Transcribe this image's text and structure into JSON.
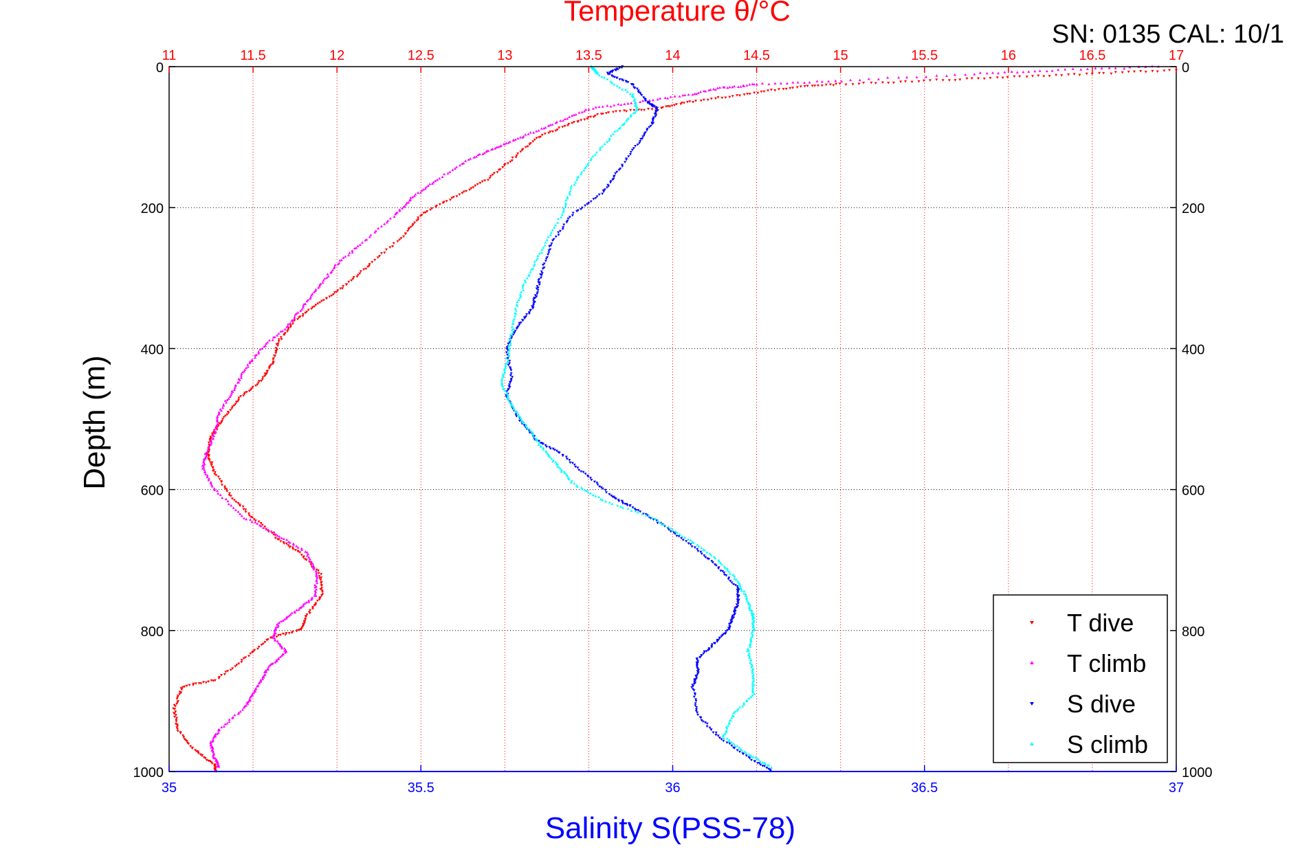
{
  "chart_data": {
    "type": "scatter",
    "title": "Temperature θ/°C",
    "header_note": "SN: 0135  CAL: 10/1",
    "top_axis": {
      "label": "Temperature θ/°C",
      "range": [
        11,
        17
      ],
      "ticks": [
        "11",
        "11.5",
        "12",
        "12.5",
        "13",
        "13.5",
        "14",
        "14.5",
        "15",
        "15.5",
        "16",
        "16.5",
        "17"
      ],
      "color": "#ff0000"
    },
    "bottom_axis": {
      "label": "Salinity S(PSS-78)",
      "range": [
        35,
        37
      ],
      "ticks": [
        "35",
        "35.5",
        "36",
        "36.5",
        "37"
      ],
      "color": "#0000ff"
    },
    "y_axis": {
      "label": "Depth (m)",
      "range": [
        0,
        1000
      ],
      "reversed": true,
      "ticks": [
        "0",
        "200",
        "400",
        "600",
        "800",
        "1000"
      ]
    },
    "grid": true,
    "legend": {
      "position": "bottom-right",
      "entries": [
        "T dive",
        "T climb",
        "S dive",
        "S climb"
      ]
    },
    "series": [
      {
        "name": "T dive",
        "axis": "temperature",
        "color": "#ff0000",
        "points": [
          [
            17.0,
            5
          ],
          [
            16.5,
            10
          ],
          [
            16.0,
            15
          ],
          [
            15.5,
            20
          ],
          [
            15.0,
            25
          ],
          [
            14.7,
            30
          ],
          [
            14.4,
            40
          ],
          [
            14.1,
            50
          ],
          [
            13.9,
            60
          ],
          [
            13.6,
            65
          ],
          [
            13.4,
            80
          ],
          [
            13.2,
            100
          ],
          [
            13.05,
            130
          ],
          [
            12.9,
            160
          ],
          [
            12.7,
            185
          ],
          [
            12.5,
            210
          ],
          [
            12.4,
            240
          ],
          [
            12.2,
            280
          ],
          [
            12.05,
            310
          ],
          [
            11.9,
            335
          ],
          [
            11.75,
            360
          ],
          [
            11.65,
            390
          ],
          [
            11.62,
            420
          ],
          [
            11.55,
            445
          ],
          [
            11.42,
            470
          ],
          [
            11.32,
            500
          ],
          [
            11.25,
            525
          ],
          [
            11.23,
            550
          ],
          [
            11.27,
            575
          ],
          [
            11.37,
            610
          ],
          [
            11.5,
            640
          ],
          [
            11.65,
            670
          ],
          [
            11.78,
            690
          ],
          [
            11.9,
            720
          ],
          [
            11.91,
            750
          ],
          [
            11.82,
            780
          ],
          [
            11.78,
            800
          ],
          [
            11.6,
            810
          ],
          [
            11.45,
            840
          ],
          [
            11.28,
            870
          ],
          [
            11.08,
            880
          ],
          [
            11.03,
            910
          ],
          [
            11.05,
            940
          ],
          [
            11.15,
            970
          ],
          [
            11.27,
            990
          ],
          [
            11.28,
            1000
          ]
        ]
      },
      {
        "name": "T climb",
        "axis": "temperature",
        "color": "#ff00ff",
        "points": [
          [
            16.9,
            0
          ],
          [
            16.3,
            5
          ],
          [
            15.8,
            10
          ],
          [
            15.0,
            20
          ],
          [
            14.5,
            25
          ],
          [
            14.3,
            30
          ],
          [
            14.1,
            40
          ],
          [
            13.8,
            50
          ],
          [
            13.5,
            60
          ],
          [
            13.3,
            80
          ],
          [
            13.1,
            100
          ],
          [
            12.95,
            115
          ],
          [
            12.8,
            130
          ],
          [
            12.6,
            160
          ],
          [
            12.45,
            185
          ],
          [
            12.35,
            210
          ],
          [
            12.15,
            250
          ],
          [
            12.0,
            280
          ],
          [
            11.9,
            310
          ],
          [
            11.8,
            340
          ],
          [
            11.7,
            370
          ],
          [
            11.55,
            400
          ],
          [
            11.45,
            430
          ],
          [
            11.38,
            460
          ],
          [
            11.3,
            490
          ],
          [
            11.27,
            520
          ],
          [
            11.22,
            550
          ],
          [
            11.2,
            570
          ],
          [
            11.27,
            600
          ],
          [
            11.45,
            640
          ],
          [
            11.65,
            665
          ],
          [
            11.82,
            690
          ],
          [
            11.88,
            720
          ],
          [
            11.87,
            750
          ],
          [
            11.77,
            770
          ],
          [
            11.65,
            790
          ],
          [
            11.62,
            810
          ],
          [
            11.7,
            830
          ],
          [
            11.6,
            850
          ],
          [
            11.55,
            870
          ],
          [
            11.5,
            890
          ],
          [
            11.45,
            910
          ],
          [
            11.3,
            940
          ],
          [
            11.25,
            960
          ],
          [
            11.27,
            980
          ],
          [
            11.3,
            995
          ]
        ]
      },
      {
        "name": "S dive",
        "axis": "salinity",
        "color": "#0000ff",
        "points": [
          [
            35.9,
            0
          ],
          [
            35.87,
            10
          ],
          [
            35.92,
            25
          ],
          [
            35.95,
            50
          ],
          [
            35.97,
            60
          ],
          [
            35.96,
            80
          ],
          [
            35.93,
            110
          ],
          [
            35.89,
            150
          ],
          [
            35.86,
            180
          ],
          [
            35.8,
            210
          ],
          [
            35.76,
            250
          ],
          [
            35.74,
            290
          ],
          [
            35.73,
            320
          ],
          [
            35.72,
            345
          ],
          [
            35.69,
            370
          ],
          [
            35.67,
            400
          ],
          [
            35.68,
            440
          ],
          [
            35.67,
            470
          ],
          [
            35.7,
            505
          ],
          [
            35.73,
            530
          ],
          [
            35.78,
            550
          ],
          [
            35.83,
            580
          ],
          [
            35.88,
            610
          ],
          [
            35.92,
            625
          ],
          [
            35.98,
            650
          ],
          [
            36.04,
            680
          ],
          [
            36.09,
            710
          ],
          [
            36.13,
            740
          ],
          [
            36.13,
            760
          ],
          [
            36.12,
            780
          ],
          [
            36.11,
            800
          ],
          [
            36.08,
            820
          ],
          [
            36.05,
            840
          ],
          [
            36.05,
            860
          ],
          [
            36.04,
            880
          ],
          [
            36.05,
            920
          ],
          [
            36.09,
            950
          ],
          [
            36.15,
            980
          ],
          [
            36.2,
            1000
          ]
        ]
      },
      {
        "name": "S climb",
        "axis": "salinity",
        "color": "#00ffff",
        "points": [
          [
            35.84,
            0
          ],
          [
            35.85,
            10
          ],
          [
            35.92,
            40
          ],
          [
            35.93,
            60
          ],
          [
            35.89,
            90
          ],
          [
            35.84,
            130
          ],
          [
            35.8,
            170
          ],
          [
            35.78,
            210
          ],
          [
            35.74,
            260
          ],
          [
            35.71,
            300
          ],
          [
            35.69,
            340
          ],
          [
            35.68,
            380
          ],
          [
            35.67,
            420
          ],
          [
            35.66,
            450
          ],
          [
            35.68,
            480
          ],
          [
            35.71,
            510
          ],
          [
            35.74,
            540
          ],
          [
            35.77,
            565
          ],
          [
            35.8,
            590
          ],
          [
            35.86,
            615
          ],
          [
            35.96,
            640
          ],
          [
            36.03,
            670
          ],
          [
            36.09,
            700
          ],
          [
            36.13,
            730
          ],
          [
            36.15,
            760
          ],
          [
            36.16,
            780
          ],
          [
            36.16,
            800
          ],
          [
            36.15,
            830
          ],
          [
            36.16,
            860
          ],
          [
            36.16,
            890
          ],
          [
            36.12,
            920
          ],
          [
            36.1,
            950
          ],
          [
            36.15,
            975
          ],
          [
            36.2,
            995
          ]
        ]
      }
    ]
  }
}
